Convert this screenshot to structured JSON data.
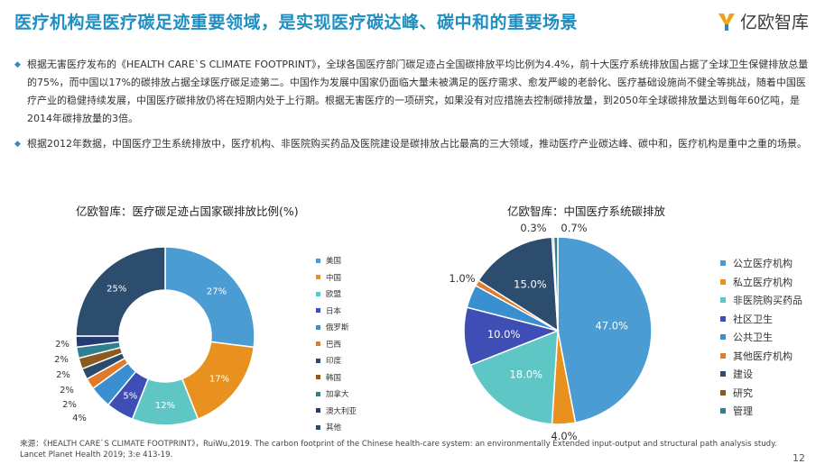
{
  "header": {
    "title": "医疗机构是医疗碳足迹重要领域，是实现医疗碳达峰、碳中和的重要场景",
    "logo_text": "亿欧智库",
    "logo_icon": "yiou-logo-icon",
    "accent_color": "#1f8fc2"
  },
  "bullets": [
    "根据无害医疗发布的《HEALTH CARE`S CLIMATE FOOTPRINT》，全球各国医疗部门碳足迹占全国碳排放平均比例为4.4%，前十大医疗系统排放国占据了全球卫生保健排放总量的75%，而中国以17%的碳排放占据全球医疗碳足迹第二。中国作为发展中国家仍面临大量未被满足的医疗需求、愈发严峻的老龄化、医疗基础设施尚不健全等挑战，随着中国医疗产业的稳健持续发展，中国医疗碳排放仍将在短期内处于上行期。根据无害医疗的一项研究，如果没有对应措施去控制碳排放量，到2050年全球碳排放量达到每年60亿吨，是2014年碳排放量的3倍。",
    "根据2012年数据，中国医疗卫生系统排放中，医疗机构、非医院购买药品及医院建设是碳排放占比最高的三大领域，推动医疗产业碳达峰、碳中和，医疗机构是重中之重的场景。"
  ],
  "chart_data": [
    {
      "type": "pie",
      "title": "亿欧智库：医疗碳足迹占国家碳排放比例(%)",
      "categories": [
        "美国",
        "中国",
        "欧盟",
        "日本",
        "俄罗斯",
        "巴西",
        "印度",
        "韩国",
        "加拿大",
        "澳大利亚",
        "其他"
      ],
      "values": [
        27,
        17,
        12,
        5,
        4,
        2,
        2,
        2,
        2,
        2,
        25
      ],
      "labels": [
        "27%",
        "17%",
        "12%",
        "5%",
        "4%",
        "2%",
        "2%",
        "2%",
        "2%",
        "2%",
        "25%"
      ],
      "colors": [
        "#4b9cd3",
        "#e8911f",
        "#5ec7c6",
        "#3e4eb5",
        "#3a8fd0",
        "#e07b2b",
        "#2a4b6b",
        "#8a5a1f",
        "#2f7f8f",
        "#243a70",
        "#2d4d6e"
      ],
      "donut": true,
      "legend_position": "right"
    },
    {
      "type": "pie",
      "title": "亿欧智库：中国医疗系统碳排放",
      "categories": [
        "公立医疗机构",
        "私立医疗机构",
        "非医院购买药品",
        "社区卫生",
        "公共卫生",
        "其他医疗机构",
        "建设",
        "研究",
        "管理"
      ],
      "values": [
        47.0,
        4.0,
        18.0,
        10.0,
        4.0,
        1.0,
        15.0,
        0.3,
        0.7
      ],
      "labels": [
        "47.0%",
        "4.0%",
        "18.0%",
        "10.0%",
        "",
        "1.0%",
        "15.0%",
        "0.3%",
        "0.7%"
      ],
      "colors": [
        "#4b9cd3",
        "#e8911f",
        "#5ec7c6",
        "#3e4eb5",
        "#3a8fd0",
        "#e07b2b",
        "#2d4d6e",
        "#8a5a1f",
        "#2f7f8f"
      ],
      "donut": false,
      "legend_position": "right"
    }
  ],
  "source": "来源：《HEALTH CARE`S CLIMATE FOOTPRINT》，RuiWu,2019. The carbon footprint of the Chinese health-care system: an environmentally Extended input-output and structural path analysis study. Lancet Planet Health 2019; 3:e 413-19.",
  "page_number": "12"
}
